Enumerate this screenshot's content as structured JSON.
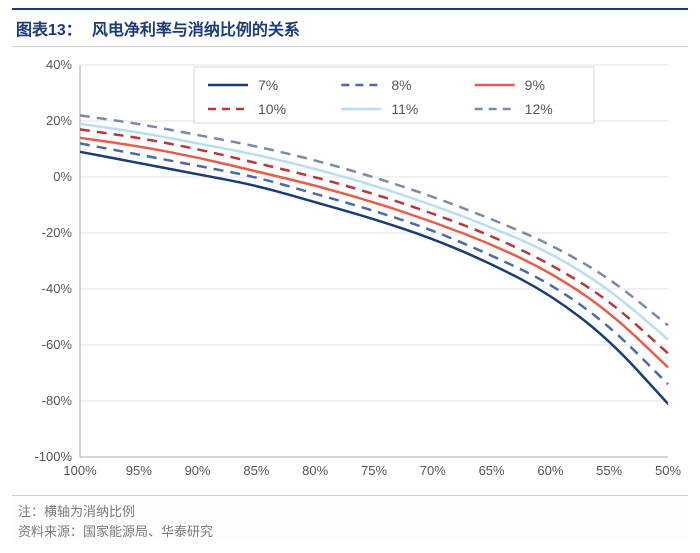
{
  "header": {
    "prefix": "图表13：",
    "title": "风电净利率与消纳比例的关系"
  },
  "footer": {
    "note": "注：横轴为消纳比例",
    "source": "资料来源：国家能源局、华泰研究"
  },
  "chart": {
    "type": "line",
    "background_color": "#ffffff",
    "grid_color": "#e3e3e3",
    "axis_text_color": "#555555",
    "x_categories": [
      "100%",
      "95%",
      "90%",
      "85%",
      "80%",
      "75%",
      "70%",
      "65%",
      "60%",
      "55%",
      "50%"
    ],
    "ylim": [
      -100,
      40
    ],
    "y_ticks": [
      40,
      20,
      0,
      -20,
      -40,
      -60,
      -80,
      -100
    ],
    "y_tick_labels": [
      "40%",
      "20%",
      "0%",
      "-20%",
      "-40%",
      "-60%",
      "-80%",
      "-100%"
    ],
    "label_fontsize": 13,
    "line_width": 2.5,
    "legend": {
      "position": "top-center",
      "border_color": "#d8d8d8",
      "background": "#ffffff",
      "fontsize": 14
    },
    "series": [
      {
        "name": "7%",
        "color": "#1a3a7a",
        "dash": "solid",
        "values": [
          9,
          5,
          1,
          -3,
          -9,
          -15,
          -22,
          -31,
          -42,
          -58,
          -81
        ]
      },
      {
        "name": "8%",
        "color": "#4a6aa8",
        "dash": "dashed",
        "values": [
          12,
          8,
          4,
          0,
          -6,
          -12,
          -19,
          -28,
          -38,
          -53,
          -74
        ]
      },
      {
        "name": "9%",
        "color": "#e95c4a",
        "dash": "solid",
        "values": [
          14,
          11,
          7,
          2,
          -3,
          -9,
          -16,
          -24,
          -34,
          -48,
          -68
        ]
      },
      {
        "name": "10%",
        "color": "#b43a3a",
        "dash": "dashed",
        "values": [
          17,
          14,
          10,
          5,
          0,
          -6,
          -13,
          -21,
          -31,
          -44,
          -63
        ]
      },
      {
        "name": "11%",
        "color": "#bcdcf0",
        "dash": "solid",
        "values": [
          19,
          16,
          12,
          8,
          3,
          -3,
          -10,
          -18,
          -27,
          -40,
          -58
        ]
      },
      {
        "name": "12%",
        "color": "#7a8aa8",
        "dash": "dashed",
        "values": [
          22,
          19,
          15,
          11,
          6,
          0,
          -7,
          -15,
          -24,
          -36,
          -53
        ]
      }
    ]
  }
}
